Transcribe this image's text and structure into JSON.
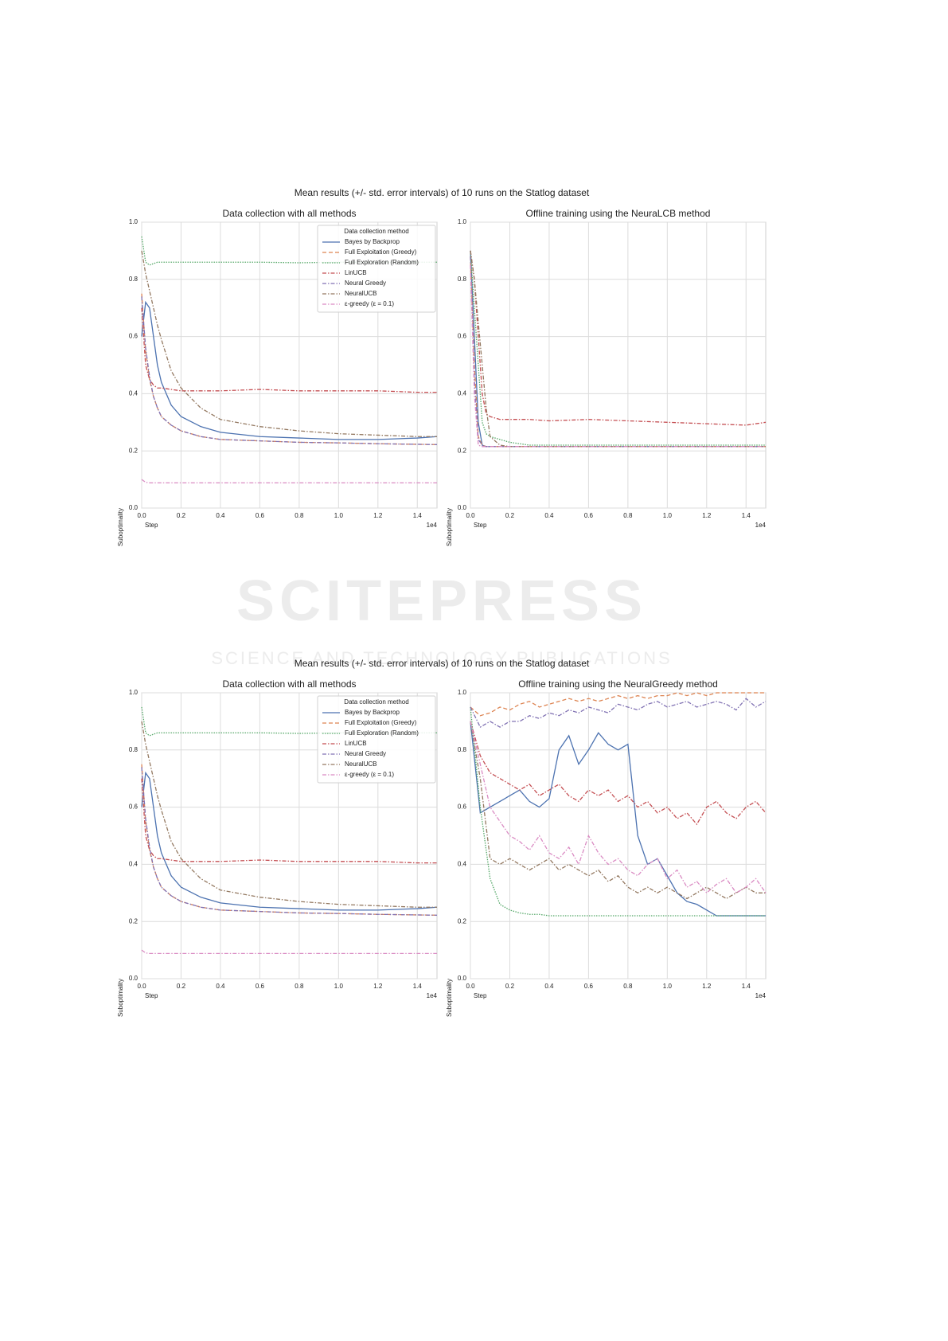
{
  "figure_titles": [
    "Mean results (+/- std. error intervals) of 10 runs on the Statlog dataset",
    "Mean results (+/- std. error intervals) of 10 runs on the Statlog dataset"
  ],
  "watermark": {
    "title": "SCITEPRESS",
    "subtitle": "SCIENCE AND TECHNOLOGY PUBLICATIONS"
  },
  "chart_data": [
    {
      "type": "line",
      "title": "Data collection with all methods",
      "xlabel": "Step",
      "ylabel": "Suboptimality",
      "x_offset_label": "1e4",
      "xlim": [
        0,
        1.5
      ],
      "ylim": [
        0,
        1
      ],
      "grid": true,
      "xticks": [
        {
          "value": 0,
          "label": "0.0"
        },
        0.2,
        0.4,
        0.6,
        0.8,
        {
          "value": 1,
          "label": "1.0"
        },
        1.2,
        1.4
      ],
      "yticks": [
        {
          "value": 0,
          "label": "0.0"
        },
        0.2,
        0.4,
        0.6,
        0.8,
        {
          "value": 1,
          "label": "1.0"
        }
      ],
      "legend": {
        "title": "Data collection method",
        "loc": "upper right"
      },
      "x": [
        0,
        0.02,
        0.04,
        0.06,
        0.08,
        0.1,
        0.15,
        0.2,
        0.3,
        0.4,
        0.6,
        0.8,
        1.0,
        1.2,
        1.4,
        1.5
      ],
      "series": [
        {
          "name": "Bayes by Backprop",
          "color": "#4c72b0",
          "linestyle": "solid",
          "values": [
            0.6,
            0.72,
            0.7,
            0.6,
            0.5,
            0.44,
            0.36,
            0.32,
            0.285,
            0.265,
            0.25,
            0.245,
            0.24,
            0.24,
            0.245,
            0.25
          ]
        },
        {
          "name": "Full Exploitation (Greedy)",
          "color": "#dd8452",
          "linestyle": "dashed",
          "values": [
            0.75,
            0.55,
            0.45,
            0.39,
            0.35,
            0.32,
            0.29,
            0.27,
            0.25,
            0.24,
            0.235,
            0.23,
            0.228,
            0.225,
            0.223,
            0.222
          ]
        },
        {
          "name": "Full Exploration (Random)",
          "color": "#55a868",
          "linestyle": "dotted",
          "values": [
            0.95,
            0.86,
            0.85,
            0.855,
            0.86,
            0.86,
            0.86,
            0.86,
            0.86,
            0.86,
            0.86,
            0.858,
            0.86,
            0.86,
            0.86,
            0.86
          ]
        },
        {
          "name": "LinUCB",
          "color": "#c44e52",
          "linestyle": "dashdot",
          "values": [
            0.7,
            0.5,
            0.45,
            0.43,
            0.42,
            0.42,
            0.415,
            0.41,
            0.41,
            0.41,
            0.415,
            0.41,
            0.41,
            0.41,
            0.405,
            0.405
          ]
        },
        {
          "name": "Neural Greedy",
          "color": "#8172b3",
          "linestyle": "dashdot",
          "values": [
            0.74,
            0.56,
            0.46,
            0.39,
            0.35,
            0.32,
            0.29,
            0.27,
            0.25,
            0.24,
            0.235,
            0.23,
            0.228,
            0.225,
            0.223,
            0.222
          ]
        },
        {
          "name": "NeuralUCB",
          "color": "#937860",
          "linestyle": "dashdot",
          "values": [
            0.9,
            0.82,
            0.76,
            0.7,
            0.64,
            0.59,
            0.48,
            0.42,
            0.35,
            0.31,
            0.285,
            0.27,
            0.26,
            0.255,
            0.25,
            0.25
          ]
        },
        {
          "name": "ε-greedy (ε = 0.1)",
          "color": "#da8bc3",
          "linestyle": "dashdot",
          "values": [
            0.1,
            0.09,
            0.088,
            0.088,
            0.088,
            0.088,
            0.088,
            0.088,
            0.088,
            0.088,
            0.088,
            0.088,
            0.088,
            0.088,
            0.088,
            0.088
          ]
        }
      ]
    },
    {
      "type": "line",
      "title": "Offline training using the NeuraLCB method",
      "xlabel": "Step",
      "ylabel": "Suboptimality",
      "x_offset_label": "1e4",
      "xlim": [
        0,
        1.5
      ],
      "ylim": [
        0,
        1
      ],
      "grid": true,
      "xticks": [
        {
          "value": 0,
          "label": "0.0"
        },
        0.2,
        0.4,
        0.6,
        0.8,
        {
          "value": 1,
          "label": "1.0"
        },
        1.2,
        1.4
      ],
      "yticks": [
        {
          "value": 0,
          "label": "0.0"
        },
        0.2,
        0.4,
        0.6,
        0.8,
        {
          "value": 1,
          "label": "1.0"
        }
      ],
      "x": [
        0,
        0.02,
        0.04,
        0.06,
        0.08,
        0.1,
        0.15,
        0.2,
        0.3,
        0.4,
        0.6,
        0.8,
        1.0,
        1.2,
        1.4,
        1.5
      ],
      "series": [
        {
          "color": "#4c72b0",
          "linestyle": "solid",
          "values": [
            0.9,
            0.6,
            0.3,
            0.22,
            0.215,
            0.215,
            0.215,
            0.215,
            0.215,
            0.215,
            0.215,
            0.215,
            0.215,
            0.215,
            0.215,
            0.215
          ]
        },
        {
          "color": "#dd8452",
          "linestyle": "dashed",
          "values": [
            0.88,
            0.5,
            0.25,
            0.22,
            0.215,
            0.215,
            0.215,
            0.215,
            0.215,
            0.215,
            0.215,
            0.215,
            0.215,
            0.215,
            0.215,
            0.215
          ]
        },
        {
          "color": "#55a868",
          "linestyle": "dotted",
          "values": [
            0.9,
            0.7,
            0.5,
            0.3,
            0.26,
            0.25,
            0.24,
            0.23,
            0.22,
            0.22,
            0.22,
            0.22,
            0.22,
            0.22,
            0.22,
            0.22
          ]
        },
        {
          "color": "#c44e52",
          "linestyle": "dashdot",
          "values": [
            0.9,
            0.8,
            0.6,
            0.4,
            0.33,
            0.32,
            0.31,
            0.31,
            0.31,
            0.305,
            0.31,
            0.305,
            0.3,
            0.295,
            0.29,
            0.3
          ]
        },
        {
          "color": "#8172b3",
          "linestyle": "dashdot",
          "values": [
            0.88,
            0.45,
            0.24,
            0.22,
            0.215,
            0.215,
            0.215,
            0.215,
            0.215,
            0.215,
            0.215,
            0.215,
            0.215,
            0.215,
            0.215,
            0.215
          ]
        },
        {
          "color": "#937860",
          "linestyle": "dashdot",
          "values": [
            0.9,
            0.8,
            0.65,
            0.5,
            0.35,
            0.25,
            0.22,
            0.215,
            0.215,
            0.215,
            0.215,
            0.215,
            0.215,
            0.215,
            0.215,
            0.215
          ]
        },
        {
          "color": "#da8bc3",
          "linestyle": "dashdot",
          "values": [
            0.85,
            0.4,
            0.22,
            0.215,
            0.215,
            0.215,
            0.215,
            0.215,
            0.215,
            0.215,
            0.215,
            0.215,
            0.215,
            0.215,
            0.215,
            0.215
          ]
        }
      ]
    },
    {
      "type": "line",
      "title": "Data collection with all methods",
      "xlabel": "Step",
      "ylabel": "Suboptimality",
      "x_offset_label": "1e4",
      "xlim": [
        0,
        1.5
      ],
      "ylim": [
        0,
        1
      ],
      "grid": true,
      "xticks": [
        {
          "value": 0,
          "label": "0.0"
        },
        0.2,
        0.4,
        0.6,
        0.8,
        {
          "value": 1,
          "label": "1.0"
        },
        1.2,
        1.4
      ],
      "yticks": [
        {
          "value": 0,
          "label": "0.0"
        },
        0.2,
        0.4,
        0.6,
        0.8,
        {
          "value": 1,
          "label": "1.0"
        }
      ],
      "legend": {
        "title": "Data collection method",
        "loc": "upper right"
      },
      "x": [
        0,
        0.02,
        0.04,
        0.06,
        0.08,
        0.1,
        0.15,
        0.2,
        0.3,
        0.4,
        0.6,
        0.8,
        1.0,
        1.2,
        1.4,
        1.5
      ],
      "series": [
        {
          "name": "Bayes by Backprop",
          "color": "#4c72b0",
          "linestyle": "solid",
          "values": [
            0.6,
            0.72,
            0.7,
            0.6,
            0.5,
            0.44,
            0.36,
            0.32,
            0.285,
            0.265,
            0.25,
            0.245,
            0.24,
            0.24,
            0.245,
            0.25
          ]
        },
        {
          "name": "Full Exploitation (Greedy)",
          "color": "#dd8452",
          "linestyle": "dashed",
          "values": [
            0.75,
            0.55,
            0.45,
            0.39,
            0.35,
            0.32,
            0.29,
            0.27,
            0.25,
            0.24,
            0.235,
            0.23,
            0.228,
            0.225,
            0.223,
            0.222
          ]
        },
        {
          "name": "Full Exploration (Random)",
          "color": "#55a868",
          "linestyle": "dotted",
          "values": [
            0.95,
            0.86,
            0.85,
            0.855,
            0.86,
            0.86,
            0.86,
            0.86,
            0.86,
            0.86,
            0.86,
            0.858,
            0.86,
            0.86,
            0.86,
            0.86
          ]
        },
        {
          "name": "LinUCB",
          "color": "#c44e52",
          "linestyle": "dashdot",
          "values": [
            0.7,
            0.5,
            0.45,
            0.43,
            0.42,
            0.42,
            0.415,
            0.41,
            0.41,
            0.41,
            0.415,
            0.41,
            0.41,
            0.41,
            0.405,
            0.405
          ]
        },
        {
          "name": "Neural Greedy",
          "color": "#8172b3",
          "linestyle": "dashdot",
          "values": [
            0.74,
            0.56,
            0.46,
            0.39,
            0.35,
            0.32,
            0.29,
            0.27,
            0.25,
            0.24,
            0.235,
            0.23,
            0.228,
            0.225,
            0.223,
            0.222
          ]
        },
        {
          "name": "NeuralUCB",
          "color": "#937860",
          "linestyle": "dashdot",
          "values": [
            0.9,
            0.82,
            0.76,
            0.7,
            0.64,
            0.59,
            0.48,
            0.42,
            0.35,
            0.31,
            0.285,
            0.27,
            0.26,
            0.255,
            0.25,
            0.25
          ]
        },
        {
          "name": "ε-greedy (ε = 0.1)",
          "color": "#da8bc3",
          "linestyle": "dashdot",
          "values": [
            0.1,
            0.09,
            0.088,
            0.088,
            0.088,
            0.088,
            0.088,
            0.088,
            0.088,
            0.088,
            0.088,
            0.088,
            0.088,
            0.088,
            0.088,
            0.088
          ]
        }
      ]
    },
    {
      "type": "line",
      "title": "Offline training using the NeuralGreedy method",
      "xlabel": "Step",
      "ylabel": "Suboptimality",
      "x_offset_label": "1e4",
      "xlim": [
        0,
        1.5
      ],
      "ylim": [
        0,
        1
      ],
      "grid": true,
      "xticks": [
        {
          "value": 0,
          "label": "0.0"
        },
        0.2,
        0.4,
        0.6,
        0.8,
        {
          "value": 1,
          "label": "1.0"
        },
        1.2,
        1.4
      ],
      "yticks": [
        {
          "value": 0,
          "label": "0.0"
        },
        0.2,
        0.4,
        0.6,
        0.8,
        {
          "value": 1,
          "label": "1.0"
        }
      ],
      "x": [
        0,
        0.05,
        0.1,
        0.15,
        0.2,
        0.25,
        0.3,
        0.35,
        0.4,
        0.45,
        0.5,
        0.55,
        0.6,
        0.65,
        0.7,
        0.75,
        0.8,
        0.85,
        0.9,
        0.95,
        1.0,
        1.05,
        1.1,
        1.15,
        1.2,
        1.25,
        1.3,
        1.35,
        1.4,
        1.45,
        1.5
      ],
      "series": [
        {
          "color": "#4c72b0",
          "linestyle": "solid",
          "values": [
            0.9,
            0.58,
            0.6,
            0.62,
            0.64,
            0.66,
            0.62,
            0.6,
            0.63,
            0.8,
            0.85,
            0.75,
            0.8,
            0.86,
            0.82,
            0.8,
            0.82,
            0.5,
            0.4,
            0.42,
            0.36,
            0.3,
            0.27,
            0.26,
            0.24,
            0.22,
            0.22,
            0.22,
            0.22,
            0.22,
            0.22
          ]
        },
        {
          "color": "#dd8452",
          "linestyle": "dashed",
          "values": [
            0.95,
            0.92,
            0.93,
            0.95,
            0.94,
            0.96,
            0.97,
            0.95,
            0.96,
            0.97,
            0.98,
            0.97,
            0.98,
            0.97,
            0.98,
            0.99,
            0.98,
            0.99,
            0.98,
            0.99,
            0.99,
            1.0,
            0.99,
            1.0,
            0.99,
            1.0,
            1.0,
            1.0,
            1.0,
            1.0,
            1.0
          ]
        },
        {
          "color": "#55a868",
          "linestyle": "dotted",
          "values": [
            0.95,
            0.6,
            0.35,
            0.26,
            0.24,
            0.23,
            0.225,
            0.225,
            0.22,
            0.22,
            0.22,
            0.22,
            0.22,
            0.22,
            0.22,
            0.22,
            0.22,
            0.22,
            0.22,
            0.22,
            0.22,
            0.22,
            0.22,
            0.22,
            0.22,
            0.22,
            0.22,
            0.22,
            0.22,
            0.22,
            0.22
          ]
        },
        {
          "color": "#c44e52",
          "linestyle": "dashdot",
          "values": [
            0.9,
            0.78,
            0.72,
            0.7,
            0.68,
            0.66,
            0.68,
            0.64,
            0.66,
            0.68,
            0.64,
            0.62,
            0.66,
            0.64,
            0.66,
            0.62,
            0.64,
            0.6,
            0.62,
            0.58,
            0.6,
            0.56,
            0.58,
            0.54,
            0.6,
            0.62,
            0.58,
            0.56,
            0.6,
            0.62,
            0.58
          ]
        },
        {
          "color": "#8172b3",
          "linestyle": "dashdot",
          "values": [
            0.95,
            0.88,
            0.9,
            0.88,
            0.9,
            0.9,
            0.92,
            0.91,
            0.93,
            0.92,
            0.94,
            0.93,
            0.95,
            0.94,
            0.93,
            0.96,
            0.95,
            0.94,
            0.96,
            0.97,
            0.95,
            0.96,
            0.97,
            0.95,
            0.96,
            0.97,
            0.96,
            0.94,
            0.98,
            0.95,
            0.97
          ]
        },
        {
          "color": "#937860",
          "linestyle": "dashdot",
          "values": [
            0.9,
            0.7,
            0.42,
            0.4,
            0.42,
            0.4,
            0.38,
            0.4,
            0.42,
            0.38,
            0.4,
            0.38,
            0.36,
            0.38,
            0.34,
            0.36,
            0.32,
            0.3,
            0.32,
            0.3,
            0.32,
            0.3,
            0.28,
            0.3,
            0.32,
            0.3,
            0.28,
            0.3,
            0.32,
            0.3,
            0.3
          ]
        },
        {
          "color": "#da8bc3",
          "linestyle": "dashdot",
          "values": [
            0.9,
            0.75,
            0.6,
            0.55,
            0.5,
            0.48,
            0.45,
            0.5,
            0.44,
            0.42,
            0.46,
            0.4,
            0.5,
            0.44,
            0.4,
            0.42,
            0.38,
            0.36,
            0.4,
            0.42,
            0.35,
            0.38,
            0.32,
            0.34,
            0.3,
            0.33,
            0.35,
            0.3,
            0.32,
            0.35,
            0.3
          ]
        }
      ]
    }
  ]
}
